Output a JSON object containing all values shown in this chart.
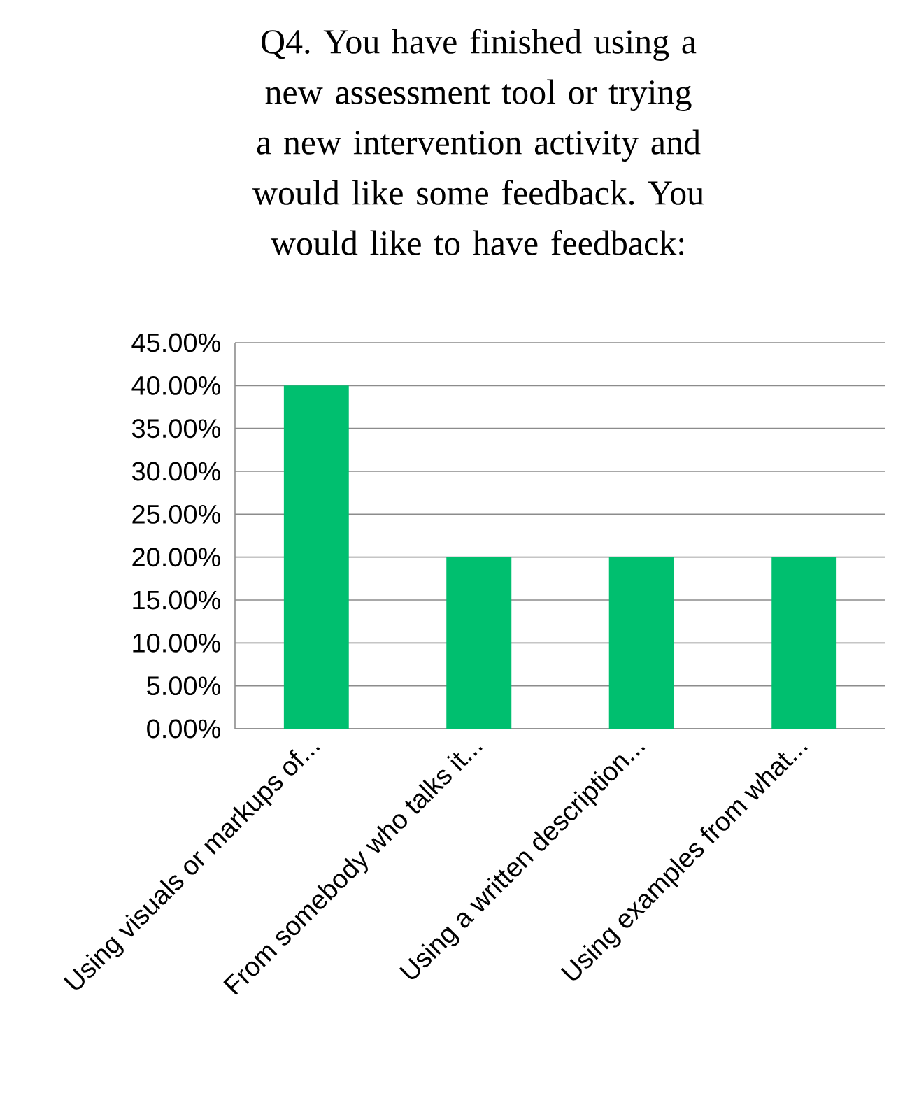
{
  "chart_data": {
    "type": "bar",
    "title": "Q4. You have finished using a new assessment tool or trying a new intervention activity and would like some feedback. You would like to have feedback:",
    "categories": [
      "Using visuals or markups of...",
      "From somebody who talks it...",
      "Using a written description...",
      "Using examples from what..."
    ],
    "values": [
      40,
      20,
      20,
      20
    ],
    "color": "#00bf6f",
    "ylim": [
      0,
      45
    ],
    "yticks": [
      {
        "value": 0,
        "label": "0.00%"
      },
      {
        "value": 5,
        "label": "5.00%"
      },
      {
        "value": 10,
        "label": "10.00%"
      },
      {
        "value": 15,
        "label": "15.00%"
      },
      {
        "value": 20,
        "label": "20.00%"
      },
      {
        "value": 25,
        "label": "25.00%"
      },
      {
        "value": 30,
        "label": "30.00%"
      },
      {
        "value": 35,
        "label": "35.00%"
      },
      {
        "value": 40,
        "label": "40.00%"
      },
      {
        "value": 45,
        "label": "45.00%"
      }
    ],
    "grid": "y"
  }
}
